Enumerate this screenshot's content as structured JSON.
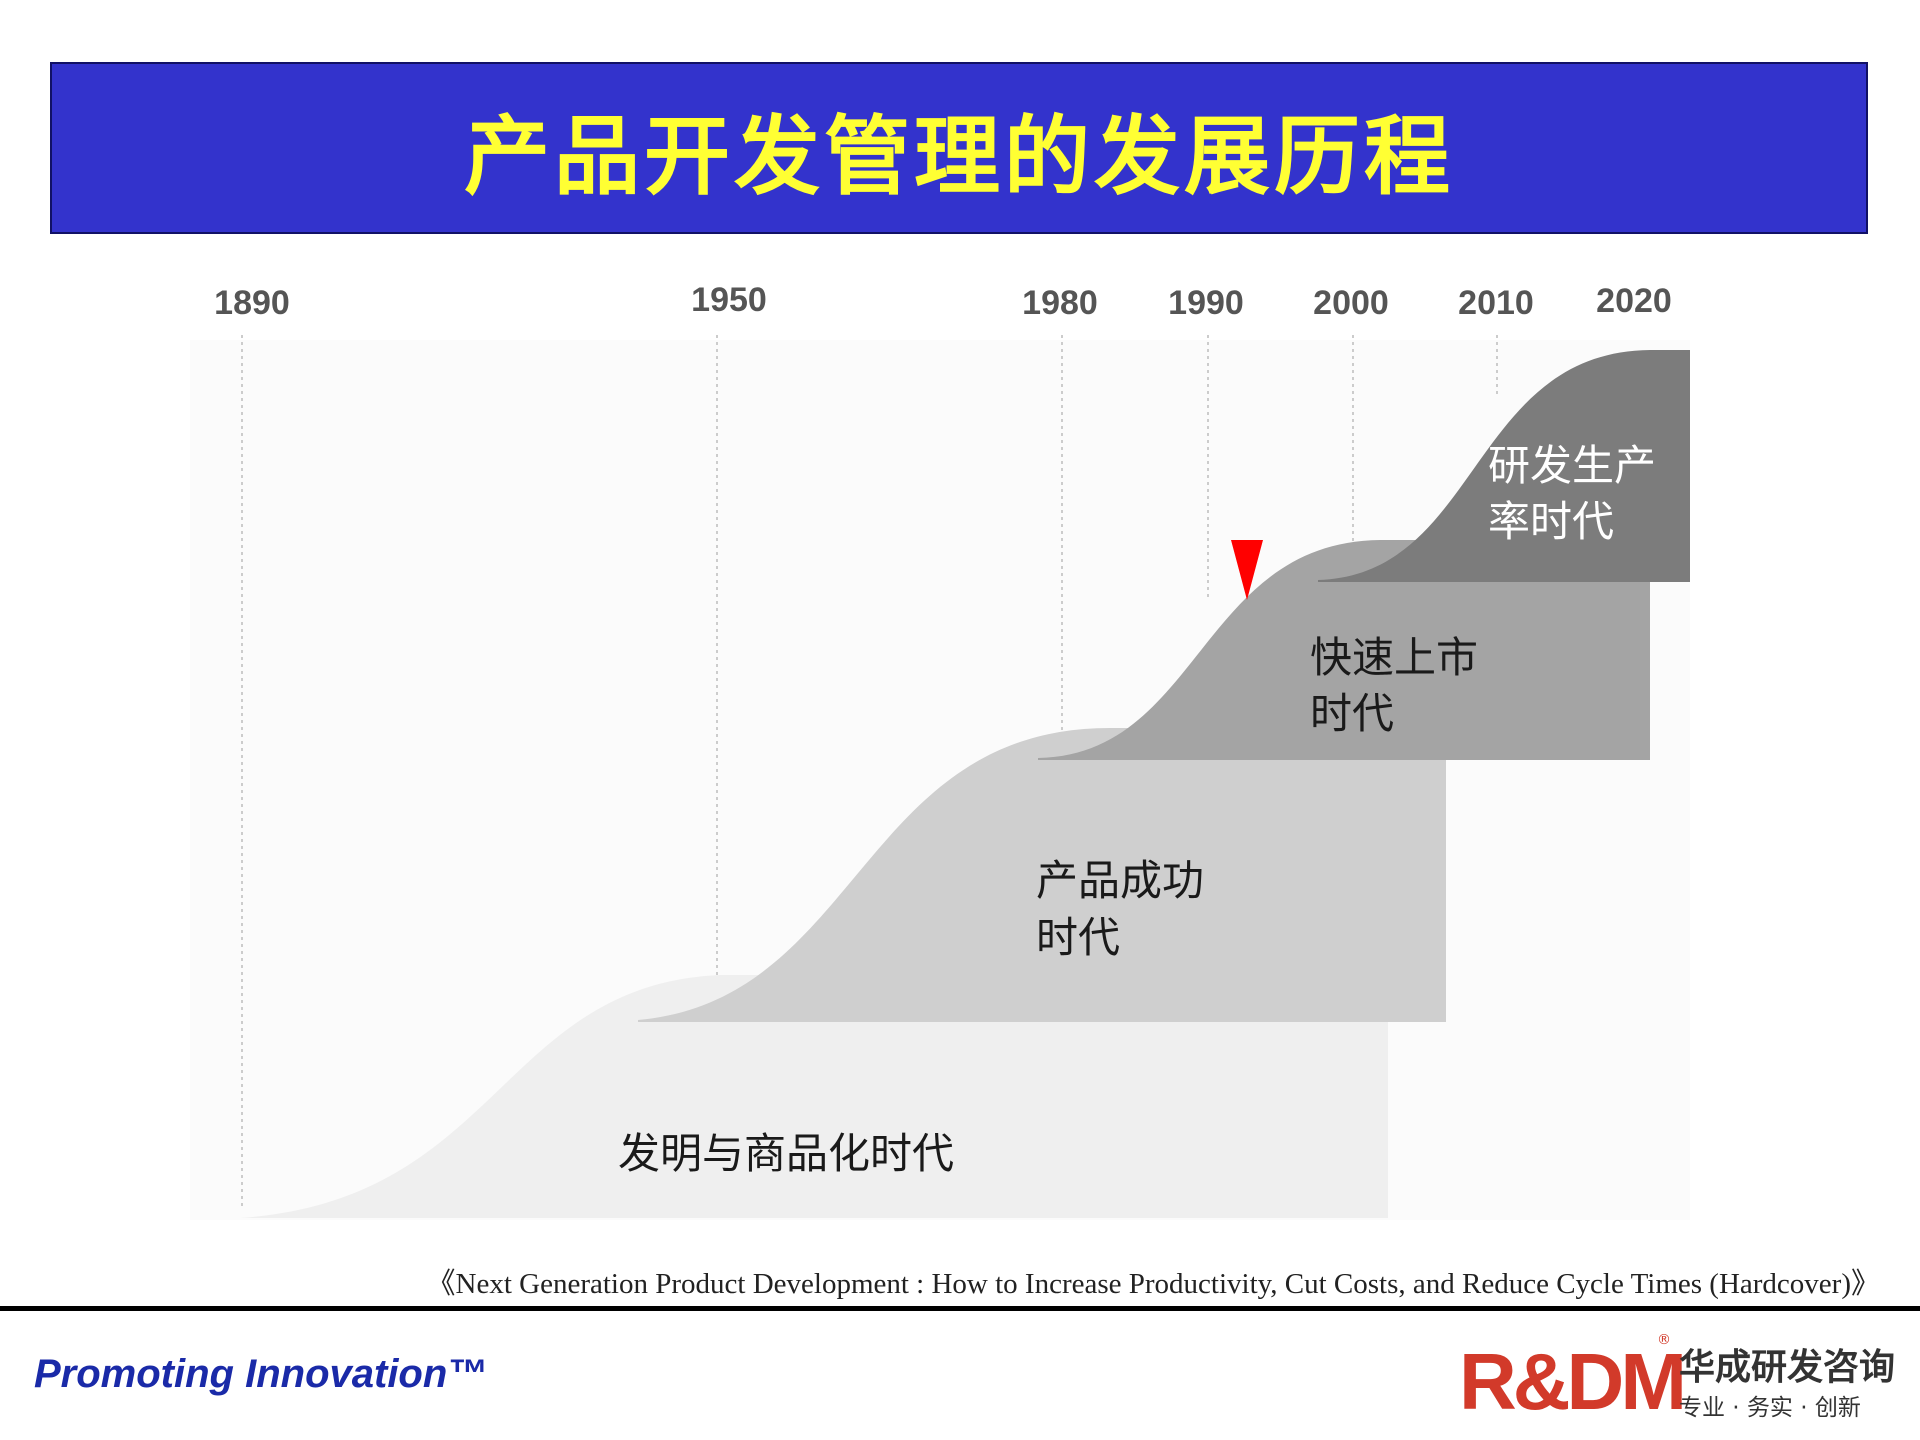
{
  "title": "产品开发管理的发展历程",
  "timeline": {
    "years": [
      "1890",
      "1950",
      "1980",
      "1990",
      "2000",
      "2010",
      "2020"
    ]
  },
  "eras": [
    {
      "label_lines": [
        "发明与商品化时代"
      ],
      "color": "#efefef"
    },
    {
      "label_lines": [
        "产品成功",
        "时代"
      ],
      "color": "#cfcfcf"
    },
    {
      "label_lines": [
        "快速上市",
        "时代"
      ],
      "color": "#a4a4a4"
    },
    {
      "label_lines": [
        "研发生产",
        "率时代"
      ],
      "color": "#7c7c7c"
    }
  ],
  "marker": {
    "color": "#ff0000",
    "icon": "red-triangle-marker"
  },
  "citation": "《Next Generation Product Development : How to Increase Productivity, Cut Costs, and Reduce Cycle Times (Hardcover)》",
  "footer": {
    "tagline": "Promoting Innovation™",
    "logo_mark": "R&DM",
    "logo_reg": "®",
    "company_name": "华成研发咨询",
    "slogan": "专业 · 务实 · 创新"
  }
}
